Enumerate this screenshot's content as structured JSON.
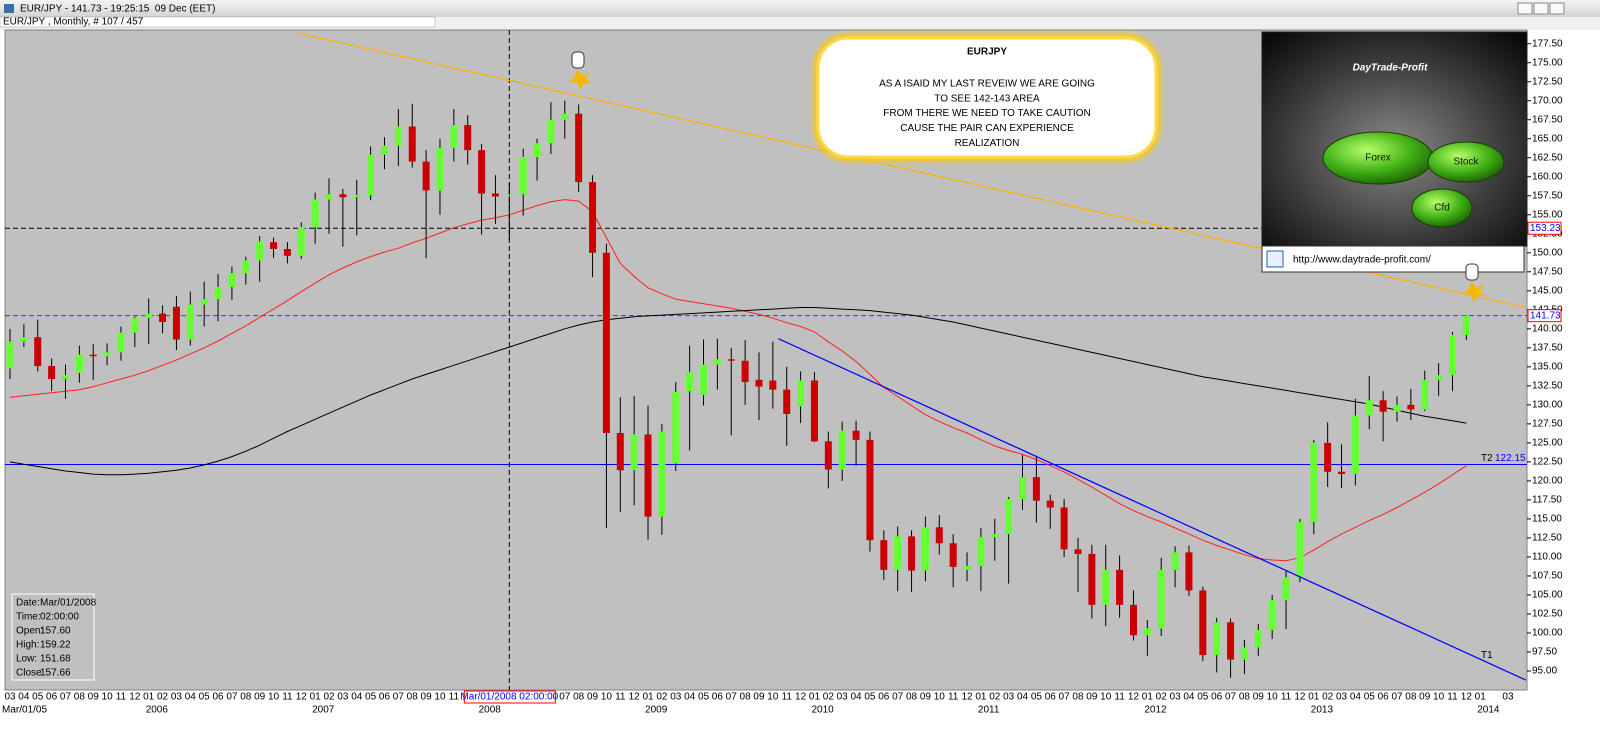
{
  "window": {
    "title": "EUR/JPY - 141.73 - 19:25:15  09 Dec (EET)"
  },
  "chart_data": {
    "type": "candlestick",
    "subtitle": "EUR/JPY , Monthly, # 107 / 457",
    "categories": [
      "03",
      "04",
      "05",
      "06",
      "07",
      "08",
      "09",
      "10",
      "11",
      "12",
      "01",
      "02",
      "03",
      "04",
      "05",
      "06",
      "07",
      "08",
      "09",
      "10",
      "11",
      "12",
      "01",
      "02",
      "03",
      "04",
      "05",
      "06",
      "07",
      "08",
      "09",
      "10",
      "11",
      "12",
      "01",
      "02",
      "03",
      "04",
      "05",
      "06",
      "07",
      "08",
      "09",
      "10",
      "11",
      "12",
      "01",
      "02",
      "03",
      "04",
      "05",
      "06",
      "07",
      "08",
      "09",
      "10",
      "11",
      "12",
      "01",
      "02",
      "03",
      "04",
      "05",
      "06",
      "07",
      "08",
      "09",
      "10",
      "11",
      "12",
      "01",
      "02",
      "03",
      "04",
      "05",
      "06",
      "07",
      "08",
      "09",
      "10",
      "11",
      "12",
      "01",
      "02",
      "03",
      "04",
      "05",
      "06",
      "07",
      "08",
      "09",
      "10",
      "11",
      "12",
      "01",
      "02",
      "03",
      "04",
      "05",
      "06",
      "07",
      "08",
      "09",
      "10",
      "11",
      "12",
      "01",
      null,
      "03"
    ],
    "year_labels": [
      "Mar/01/05",
      null,
      null,
      null,
      null,
      null,
      null,
      null,
      null,
      null,
      "2006",
      null,
      null,
      null,
      null,
      null,
      null,
      null,
      null,
      null,
      null,
      null,
      "2007",
      null,
      null,
      null,
      null,
      null,
      null,
      null,
      null,
      null,
      null,
      null,
      "2008",
      null,
      null,
      null,
      null,
      null,
      null,
      null,
      null,
      null,
      null,
      null,
      "2009",
      null,
      null,
      null,
      null,
      null,
      null,
      null,
      null,
      null,
      null,
      null,
      "2010",
      null,
      null,
      null,
      null,
      null,
      null,
      null,
      null,
      null,
      null,
      null,
      "2011",
      null,
      null,
      null,
      null,
      null,
      null,
      null,
      null,
      null,
      null,
      null,
      "2012",
      null,
      null,
      null,
      null,
      null,
      null,
      null,
      null,
      null,
      null,
      null,
      "2013",
      null,
      null,
      null,
      null,
      null,
      null,
      null,
      null,
      null,
      null,
      null,
      "2014",
      null,
      null
    ],
    "open": [
      134.8,
      138.3,
      138.9,
      135.1,
      133.4,
      134.2,
      136.6,
      136.4,
      136.9,
      139.5,
      141.4,
      142.0,
      142.9,
      138.6,
      143.2,
      143.9,
      145.5,
      147.3,
      149.0,
      151.4,
      150.5,
      149.6,
      153.4,
      157.0,
      157.7,
      157.3,
      157.6,
      162.9,
      164.1,
      166.6,
      162.0,
      158.2,
      163.8,
      166.8,
      163.5,
      157.8,
      157.6,
      157.7,
      162.6,
      164.4,
      167.5,
      168.3,
      159.3,
      150.0,
      126.3,
      121.4,
      126.1,
      115.3,
      122.3,
      131.8,
      131.3,
      135.3,
      136.0,
      135.8,
      133.3,
      133.2,
      132.0,
      129.8,
      133.2,
      125.2,
      121.5,
      126.6,
      125.4,
      112.2,
      108.3,
      112.7,
      108.2,
      113.9,
      111.8,
      108.3,
      108.8,
      112.6,
      113.0,
      117.6,
      120.5,
      117.4,
      116.5,
      111.0,
      110.4,
      103.7,
      108.3,
      103.7,
      99.7,
      100.6,
      108.3,
      110.6,
      105.6,
      97.1,
      101.4,
      96.5,
      98.1,
      100.4,
      104.3,
      107.3,
      114.6,
      125.0,
      121.2,
      120.9,
      128.6,
      130.6,
      129.1,
      130.0,
      129.4,
      133.3,
      133.9,
      139.2,
      null,
      null,
      null
    ],
    "high": [
      140.0,
      140.6,
      141.2,
      136.1,
      135.3,
      137.8,
      138.0,
      138.1,
      140.3,
      141.6,
      144.0,
      143.1,
      144.3,
      144.9,
      146.2,
      147.2,
      148.2,
      149.5,
      152.2,
      152.0,
      151.4,
      154.0,
      157.9,
      159.8,
      158.4,
      159.6,
      164.0,
      165.2,
      168.9,
      169.6,
      163.5,
      165.0,
      168.9,
      168.1,
      164.3,
      160.2,
      159.22,
      163.7,
      165.0,
      169.8,
      170.0,
      169.5,
      160.2,
      151.2,
      131.0,
      131.2,
      129.9,
      127.5,
      133.0,
      137.8,
      138.6,
      138.7,
      137.5,
      138.5,
      136.9,
      138.3,
      135.0,
      134.4,
      134.3,
      126.5,
      127.8,
      127.9,
      126.5,
      113.5,
      114.0,
      113.5,
      115.3,
      115.5,
      113.0,
      110.6,
      113.8,
      115.0,
      117.9,
      123.4,
      123.3,
      118.2,
      117.6,
      112.5,
      111.6,
      111.6,
      110.2,
      105.6,
      101.7,
      109.9,
      111.4,
      111.5,
      106.1,
      102.0,
      101.9,
      99.1,
      101.2,
      105.0,
      108.2,
      115.0,
      125.4,
      127.7,
      124.8,
      130.8,
      133.8,
      131.8,
      131.1,
      132.1,
      134.5,
      135.5,
      139.6,
      141.8,
      null,
      null,
      null
    ],
    "low": [
      133.4,
      137.6,
      134.4,
      131.8,
      130.8,
      132.9,
      133.3,
      135.2,
      135.8,
      137.6,
      138.0,
      139.4,
      137.2,
      137.8,
      140.3,
      141.0,
      143.8,
      145.8,
      146.2,
      149.3,
      148.6,
      149.2,
      151.2,
      152.5,
      150.8,
      152.3,
      156.9,
      161.0,
      161.4,
      161.2,
      149.3,
      155.0,
      162.0,
      161.6,
      152.4,
      153.8,
      151.68,
      154.9,
      159.5,
      163.0,
      165.0,
      158.0,
      146.8,
      113.8,
      115.9,
      116.8,
      112.3,
      112.9,
      121.3,
      124.0,
      129.9,
      132.0,
      126.0,
      130.0,
      128.0,
      129.5,
      124.6,
      127.6,
      125.1,
      119.0,
      120.0,
      122.0,
      110.7,
      107.0,
      105.5,
      105.4,
      106.8,
      110.3,
      106.0,
      106.8,
      105.5,
      109.5,
      106.5,
      116.2,
      114.5,
      113.7,
      110.0,
      105.4,
      101.9,
      100.9,
      102.0,
      99.0,
      97.0,
      99.6,
      106.0,
      104.9,
      96.3,
      94.8,
      94.1,
      94.6,
      97.0,
      99.2,
      100.5,
      106.7,
      113.0,
      119.2,
      119.1,
      119.4,
      126.8,
      125.2,
      127.8,
      128.0,
      129.2,
      131.2,
      131.8,
      138.5,
      null,
      null,
      null
    ],
    "close": [
      138.3,
      138.9,
      135.1,
      133.4,
      133.9,
      136.6,
      136.4,
      136.9,
      139.5,
      141.4,
      142.0,
      140.9,
      138.6,
      143.2,
      143.9,
      145.5,
      147.3,
      149.0,
      151.5,
      150.5,
      149.6,
      153.4,
      157.0,
      157.7,
      157.3,
      157.6,
      162.9,
      164.1,
      166.6,
      162.0,
      158.2,
      163.8,
      166.8,
      163.5,
      157.8,
      157.4,
      157.66,
      162.6,
      164.4,
      167.5,
      168.3,
      159.3,
      150.0,
      126.3,
      121.4,
      126.1,
      115.3,
      126.5,
      131.7,
      134.3,
      135.3,
      136.0,
      135.8,
      133.0,
      132.4,
      132.0,
      128.8,
      133.2,
      125.2,
      121.5,
      126.6,
      125.4,
      112.2,
      108.3,
      112.7,
      108.2,
      113.9,
      111.8,
      108.7,
      108.8,
      112.6,
      113.0,
      117.6,
      120.5,
      117.4,
      116.5,
      111.0,
      110.4,
      103.7,
      108.3,
      103.7,
      99.7,
      100.6,
      108.3,
      110.6,
      105.6,
      97.1,
      101.4,
      96.5,
      98.1,
      100.4,
      104.3,
      107.3,
      114.6,
      125.0,
      121.2,
      120.9,
      128.6,
      130.6,
      129.1,
      130.0,
      129.4,
      133.3,
      133.9,
      139.2,
      141.73,
      null,
      null,
      null
    ],
    "up_color": "#66ff33",
    "down_color": "#cc0000",
    "wick_color": "#000000",
    "overlays": [
      {
        "color": "#ff2020",
        "values": [
          131.0,
          131.2,
          131.4,
          131.6,
          131.8,
          132.0,
          132.4,
          132.9,
          133.4,
          133.9,
          134.5,
          135.2,
          135.9,
          136.7,
          137.5,
          138.4,
          139.4,
          140.4,
          141.5,
          142.6,
          143.7,
          144.9,
          146.0,
          147.1,
          148.0,
          148.8,
          149.5,
          150.1,
          150.6,
          151.3,
          151.9,
          152.6,
          153.3,
          153.8,
          154.3,
          154.6,
          155.0,
          155.6,
          156.2,
          156.7,
          157.0,
          156.8,
          155.4,
          152.0,
          148.6,
          146.9,
          145.4,
          144.6,
          143.9,
          143.6,
          143.3,
          143.0,
          142.7,
          142.3,
          141.9,
          141.4,
          140.8,
          140.3,
          139.6,
          138.3,
          137.1,
          135.7,
          134.0,
          132.3,
          131.1,
          129.9,
          128.7,
          127.8,
          127.0,
          126.3,
          125.4,
          124.6,
          124.0,
          123.5,
          122.8,
          122.0,
          121.2,
          120.2,
          119.2,
          118.1,
          117.0,
          116.1,
          115.3,
          114.6,
          113.8,
          113.0,
          112.2,
          111.5,
          110.9,
          110.3,
          109.8,
          109.6,
          109.5,
          109.9,
          110.9,
          112.0,
          113.0,
          113.9,
          114.8,
          115.6,
          116.5,
          117.5,
          118.5,
          119.6,
          120.8,
          122.0,
          null,
          null,
          null
        ]
      },
      {
        "color": "#000000",
        "values": [
          122.5,
          122.2,
          121.9,
          121.6,
          121.3,
          121.1,
          120.9,
          120.8,
          120.8,
          120.9,
          121.0,
          121.2,
          121.4,
          121.7,
          122.1,
          122.6,
          123.2,
          123.9,
          124.7,
          125.6,
          126.5,
          127.3,
          128.1,
          128.9,
          129.7,
          130.5,
          131.3,
          132.0,
          132.7,
          133.4,
          134.0,
          134.6,
          135.2,
          135.8,
          136.4,
          137.0,
          137.6,
          138.2,
          138.8,
          139.4,
          140.0,
          140.5,
          140.9,
          141.2,
          141.4,
          141.6,
          141.7,
          141.8,
          141.9,
          142.0,
          142.1,
          142.2,
          142.3,
          142.4,
          142.5,
          142.6,
          142.7,
          142.8,
          142.8,
          142.7,
          142.6,
          142.5,
          142.4,
          142.2,
          142.0,
          141.8,
          141.5,
          141.2,
          140.9,
          140.5,
          140.1,
          139.7,
          139.3,
          138.9,
          138.5,
          138.1,
          137.7,
          137.3,
          136.9,
          136.5,
          136.1,
          135.7,
          135.3,
          134.9,
          134.5,
          134.1,
          133.7,
          133.4,
          133.1,
          132.8,
          132.5,
          132.2,
          131.9,
          131.6,
          131.3,
          131.0,
          130.7,
          130.4,
          130.1,
          129.7,
          129.3,
          128.9,
          128.5,
          128.2,
          127.9,
          127.6,
          null,
          null,
          null
        ]
      }
    ],
    "trendlines": [
      {
        "color": "#ffb000",
        "x": [
          20.7,
          109.3
        ],
        "y": [
          178.9,
          142.8
        ]
      },
      {
        "color": "#0000ff",
        "x": [
          55.4,
          109.3
        ],
        "y": [
          138.7,
          93.8
        ],
        "label": "T1"
      }
    ],
    "hlines": [
      {
        "value": 141.73,
        "color": "#3333ff",
        "dashed": true,
        "axis_label": "141.73"
      },
      {
        "value": 122.15,
        "color": "#0000ff",
        "dashed": false,
        "tag": "T2",
        "label": "122.15"
      }
    ],
    "crosshair": {
      "x": 36,
      "y": 153.23,
      "x_label": "Mar/01/2008 02:00:00",
      "y_label": "153.23"
    },
    "ylim": [
      92.5,
      179.3
    ],
    "yticks": [
      {
        "value": 95,
        "label": "95.00"
      },
      {
        "value": 97.5,
        "label": "97.50"
      },
      {
        "value": 100,
        "label": "100.00"
      },
      {
        "value": 102.5,
        "label": "102.50"
      },
      {
        "value": 105,
        "label": "105.00"
      },
      {
        "value": 107.5,
        "label": "107.50"
      },
      {
        "value": 110,
        "label": "110.00"
      },
      {
        "value": 112.5,
        "label": "112.50"
      },
      {
        "value": 115,
        "label": "115.00"
      },
      {
        "value": 117.5,
        "label": "117.50"
      },
      {
        "value": 120,
        "label": "120.00"
      },
      {
        "value": 122.5,
        "label": "122.50"
      },
      {
        "value": 125,
        "label": "125.00"
      },
      {
        "value": 127.5,
        "label": "127.50"
      },
      {
        "value": 130,
        "label": "130.00"
      },
      {
        "value": 132.5,
        "label": "132.50"
      },
      {
        "value": 135,
        "label": "135.00"
      },
      {
        "value": 137.5,
        "label": "137.50"
      },
      {
        "value": 140,
        "label": "140.00"
      },
      {
        "value": 142.5,
        "label": "142.50"
      },
      {
        "value": 145,
        "label": "145.00"
      },
      {
        "value": 147.5,
        "label": "147.50"
      },
      {
        "value": 150,
        "label": "150.00"
      },
      {
        "value": 152.5,
        "label": "152.50"
      },
      {
        "value": 155,
        "label": "155.00"
      },
      {
        "value": 157.5,
        "label": "157.50"
      },
      {
        "value": 160,
        "label": "160.00"
      },
      {
        "value": 162.5,
        "label": "162.50"
      },
      {
        "value": 165,
        "label": "165.00"
      },
      {
        "value": 167.5,
        "label": "167.50"
      },
      {
        "value": 170,
        "label": "170.00"
      },
      {
        "value": 172.5,
        "label": "172.50"
      },
      {
        "value": 175,
        "label": "175.00"
      },
      {
        "value": 177.5,
        "label": "177.50"
      }
    ]
  },
  "info_box": {
    "rows": [
      [
        "Date:",
        "Mar/01/2008"
      ],
      [
        "Time:",
        "02:00:00"
      ],
      [
        "Open:",
        "157.60"
      ],
      [
        "High:",
        "159.22"
      ],
      [
        "Low:",
        "151.68"
      ],
      [
        "Close:",
        "157.66"
      ]
    ]
  },
  "annotation": {
    "title": "EURJPY",
    "lines": [
      "AS A ISAID MY LAST REVEIW WE ARE GOING",
      "TO SEE 142-143 AREA",
      "FROM THERE WE NEED TO TAKE CAUTION",
      "CAUSE THE PAIR CAN EXPERIENCE",
      "REALIZATION"
    ]
  },
  "ad": {
    "brand": "DayTrade-Profit",
    "buttons": [
      "Forex",
      "Stock",
      "Cfd"
    ],
    "url": "http://www.daytrade-profit.com/"
  }
}
